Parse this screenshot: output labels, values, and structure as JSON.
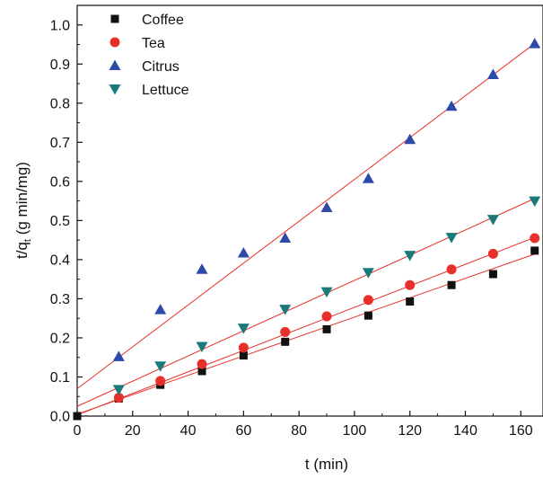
{
  "chart_data": {
    "type": "scatter",
    "xlabel": "t (min)",
    "ylabel_main": "t/q",
    "ylabel_sub": "t",
    "ylabel_unit": " (g min/mg)",
    "xlim": [
      0,
      168
    ],
    "ylim": [
      0,
      1.05
    ],
    "xticks": [
      0,
      20,
      40,
      60,
      80,
      100,
      120,
      140,
      160
    ],
    "yticks": [
      0.0,
      0.1,
      0.2,
      0.3,
      0.4,
      0.5,
      0.6,
      0.7,
      0.8,
      0.9,
      1.0
    ],
    "ytick_labels": [
      "0.0",
      "0.1",
      "0.2",
      "0.3",
      "0.4",
      "0.5",
      "0.6",
      "0.7",
      "0.8",
      "0.9",
      "1.0"
    ],
    "xtick_labels": [
      "0",
      "20",
      "40",
      "60",
      "80",
      "100",
      "120",
      "140",
      "160"
    ],
    "grid": false,
    "legend_position": "top-left",
    "fit_line_color": "#e8302a",
    "series": [
      {
        "name": "Coffee",
        "marker": "square",
        "color": "#111111",
        "x": [
          0,
          15,
          30,
          45,
          60,
          75,
          90,
          105,
          120,
          135,
          150,
          165
        ],
        "y": [
          0.0,
          0.045,
          0.08,
          0.115,
          0.155,
          0.19,
          0.222,
          0.257,
          0.293,
          0.335,
          0.363,
          0.423
        ],
        "fit": {
          "intercept": 0.005,
          "slope": 0.00248
        }
      },
      {
        "name": "Tea",
        "marker": "circle",
        "color": "#e8302a",
        "x": [
          15,
          30,
          45,
          60,
          75,
          90,
          105,
          120,
          135,
          150,
          165
        ],
        "y": [
          0.047,
          0.09,
          0.133,
          0.175,
          0.215,
          0.255,
          0.297,
          0.335,
          0.375,
          0.415,
          0.455
        ],
        "fit": {
          "intercept": 0.003,
          "slope": 0.00275
        }
      },
      {
        "name": "Citrus",
        "marker": "triangle-up",
        "color": "#2e4aa8",
        "x": [
          15,
          30,
          45,
          60,
          75,
          90,
          105,
          120,
          135,
          150,
          165
        ],
        "y": [
          0.152,
          0.272,
          0.375,
          0.417,
          0.455,
          0.533,
          0.607,
          0.707,
          0.792,
          0.873,
          0.952
        ],
        "fit": {
          "intercept": 0.07,
          "slope": 0.00535
        }
      },
      {
        "name": "Lettuce",
        "marker": "triangle-down",
        "color": "#1a7a7a",
        "x": [
          15,
          30,
          45,
          60,
          75,
          90,
          105,
          120,
          135,
          150,
          165
        ],
        "y": [
          0.068,
          0.128,
          0.178,
          0.225,
          0.273,
          0.318,
          0.367,
          0.411,
          0.457,
          0.503,
          0.55
        ],
        "fit": {
          "intercept": 0.025,
          "slope": 0.00322
        }
      }
    ]
  }
}
